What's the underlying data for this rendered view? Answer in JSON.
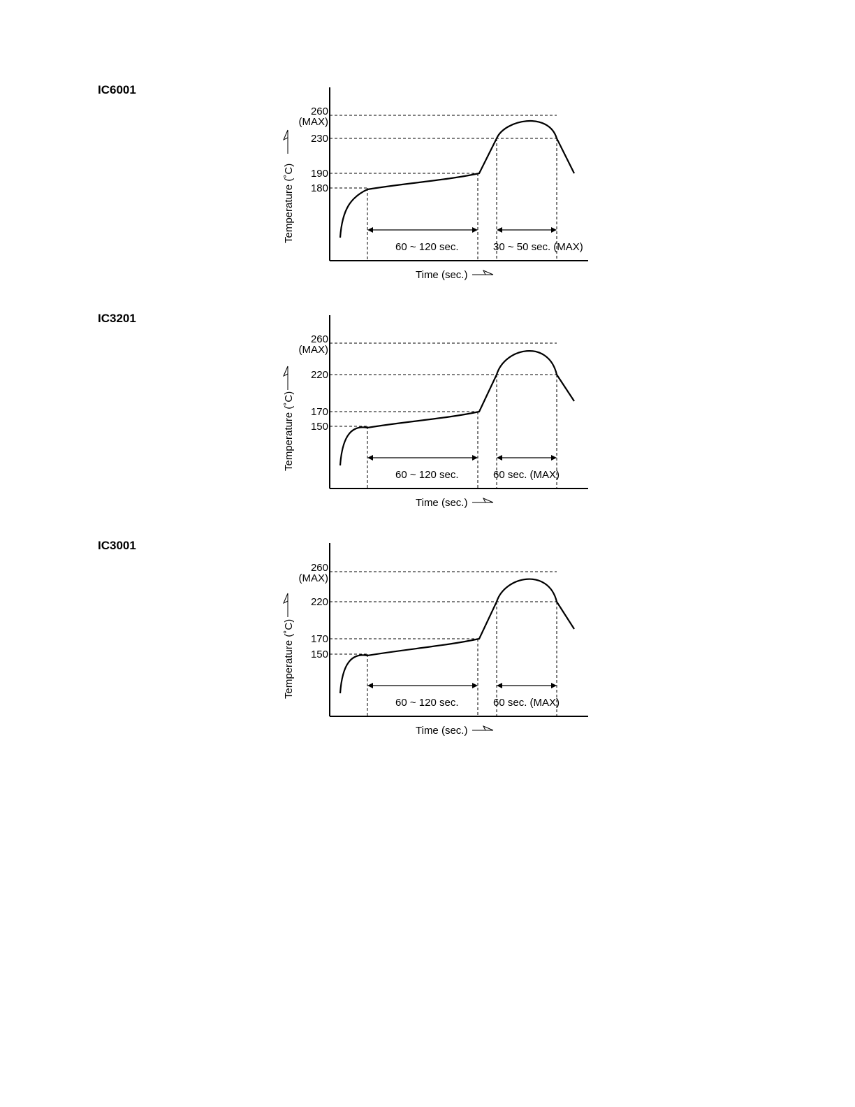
{
  "profiles": [
    {
      "part": "IC6001",
      "ticks": [
        {
          "label": "260"
        },
        {
          "label": "230"
        },
        {
          "label": "190"
        },
        {
          "label": "180"
        }
      ],
      "max_label": "(MAX)",
      "ylabel": "Temperature (˚C)",
      "xlabel": "Time (sec.)",
      "span1": "60 ~ 120 sec.",
      "span2": "30 ~ 50 sec. (MAX)"
    },
    {
      "part": "IC3201",
      "ticks": [
        {
          "label": "260"
        },
        {
          "label": "220"
        },
        {
          "label": "170"
        },
        {
          "label": "150"
        }
      ],
      "max_label": "(MAX)",
      "ylabel": "Temperature (˚C)",
      "xlabel": "Time (sec.)",
      "span1": "60 ~ 120 sec.",
      "span2": "60 sec. (MAX)"
    },
    {
      "part": "IC3001",
      "ticks": [
        {
          "label": "260"
        },
        {
          "label": "220"
        },
        {
          "label": "170"
        },
        {
          "label": "150"
        }
      ],
      "max_label": "(MAX)",
      "ylabel": "Temperature (˚C)",
      "xlabel": "Time (sec.)",
      "span1": "60 ~ 120 sec.",
      "span2": "60 sec. (MAX)"
    }
  ]
}
